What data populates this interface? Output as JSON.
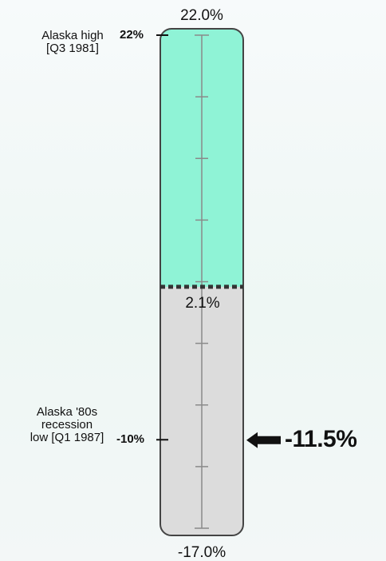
{
  "chart_data": {
    "type": "gauge",
    "orientation": "vertical",
    "range": [
      -17.0,
      22.0
    ],
    "max_label": "22.0%",
    "min_label": "-17.0%",
    "fill_level": 2.1,
    "fill_level_label": "2.1%",
    "fill_color": "#8ff3d6",
    "empty_color": "#dcdcdc",
    "anchors": [
      {
        "value": 22,
        "value_label": "22%",
        "note_lines": [
          "Alaska high",
          "[Q3 1981]"
        ]
      },
      {
        "value": -10,
        "value_label": "-10%",
        "note_lines": [
          "Alaska '80s",
          "recession",
          "low [Q1 1987]"
        ]
      }
    ],
    "current": {
      "value": -11.5,
      "label": "-11.5%",
      "marker": "left-arrow-icon"
    },
    "grid": true
  }
}
